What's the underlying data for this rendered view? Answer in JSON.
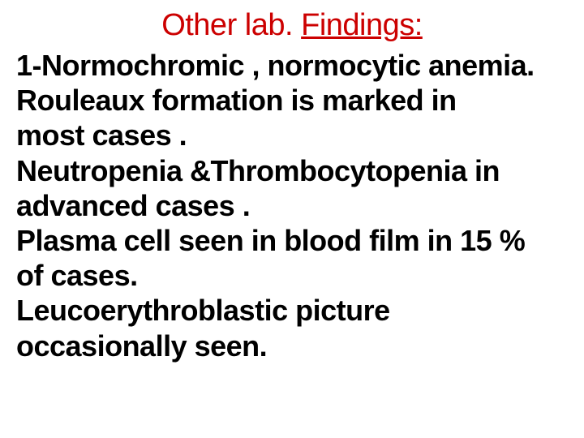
{
  "slide": {
    "title_prefix": "Other lab. ",
    "title_underlined": "Findings:",
    "title_color": "#cc0000",
    "title_fontsize": 38,
    "body_fontsize": 36,
    "body_color": "#000000",
    "background_color": "#ffffff",
    "lines": [
      "1-Normochromic , normocytic anemia.",
      "Rouleaux formation is marked in",
      "most cases .",
      "Neutropenia &Thrombocytopenia in",
      "advanced cases .",
      "Plasma cell seen in blood film in 15 %",
      "of cases.",
      "Leucoerythroblastic picture",
      "occasionally seen."
    ]
  }
}
